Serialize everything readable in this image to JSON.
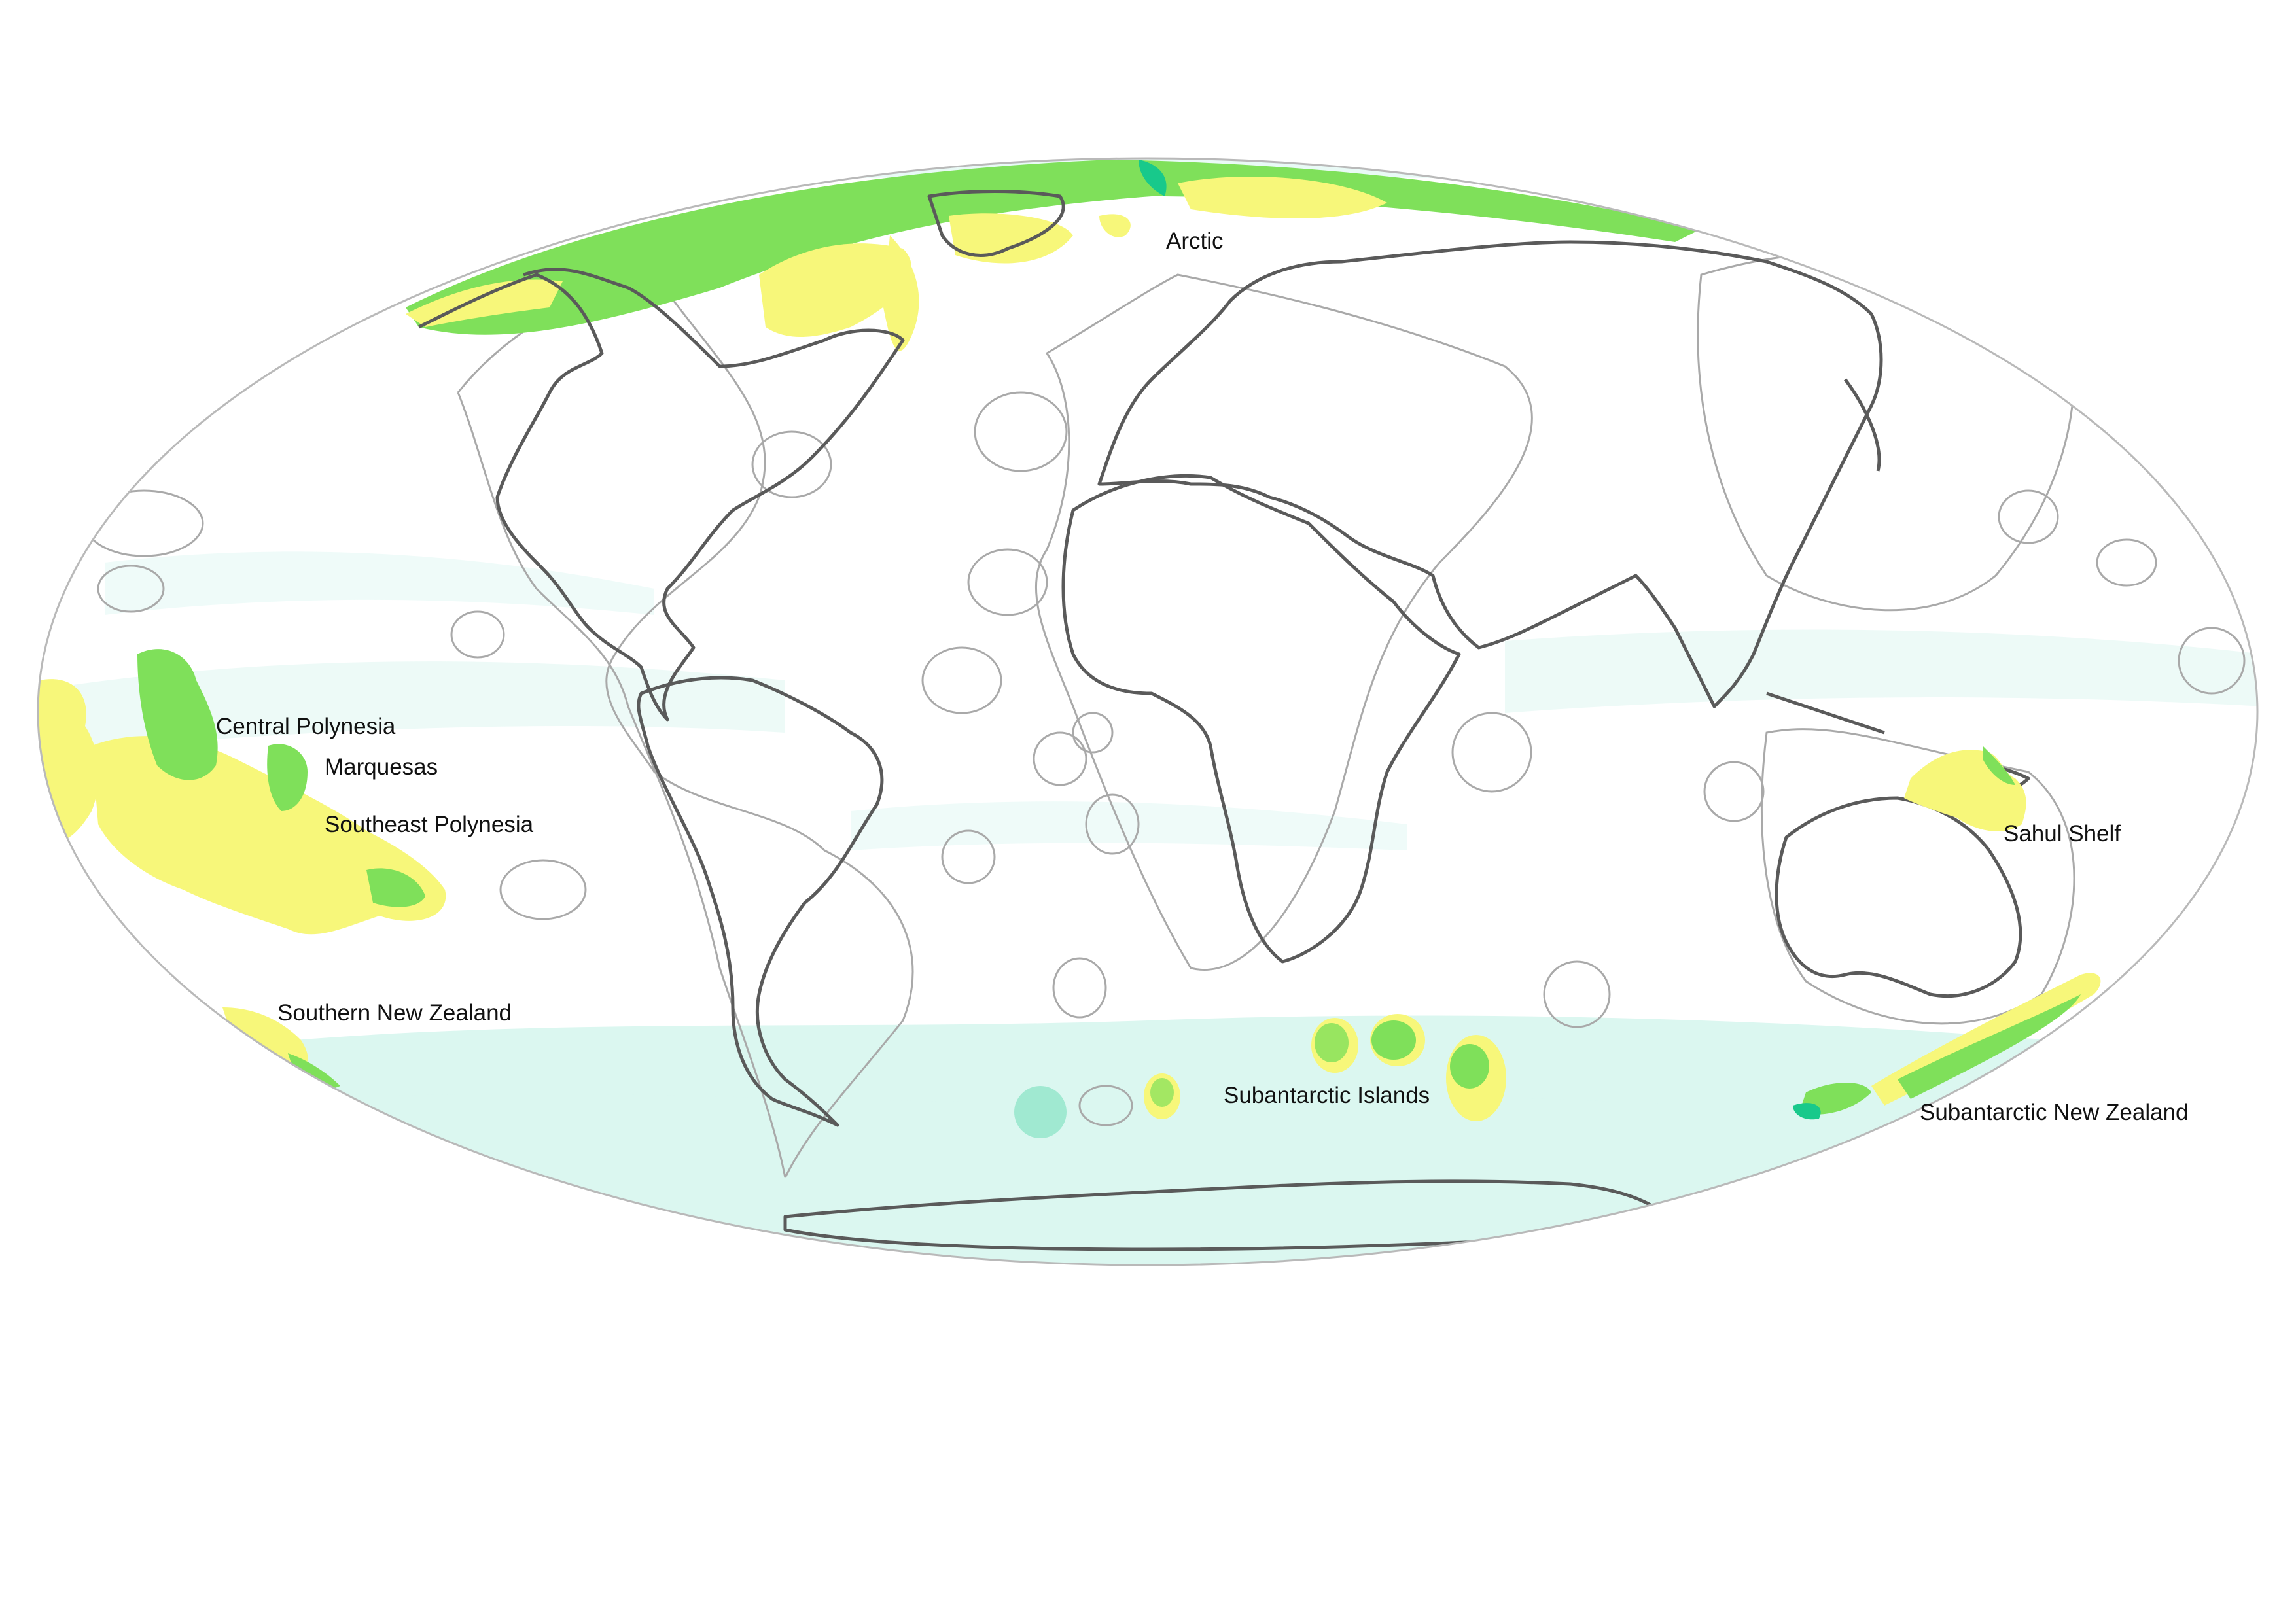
{
  "map": {
    "projection": "mollweide",
    "colors": {
      "background": "#ffffff",
      "ocean_low": "#d7f6ef",
      "coverage_high_yellow": "#f7f77a",
      "coverage_green": "#7fe05a",
      "coverage_teal": "#18c98b",
      "coastline": "#5a5a5a",
      "eez_outline": "#a9a9a9"
    },
    "labels": {
      "arctic": "Arctic",
      "central_polynesia": "Central Polynesia",
      "marquesas": "Marquesas",
      "southeast_polynesia": "Southeast Polynesia",
      "southern_new_zealand": "Southern New Zealand",
      "subantarctic_islands": "Subantarctic Islands",
      "sahul_shelf": "Sahul Shelf",
      "subantarctic_new_zealand": "Subantarctic New Zealand"
    }
  }
}
